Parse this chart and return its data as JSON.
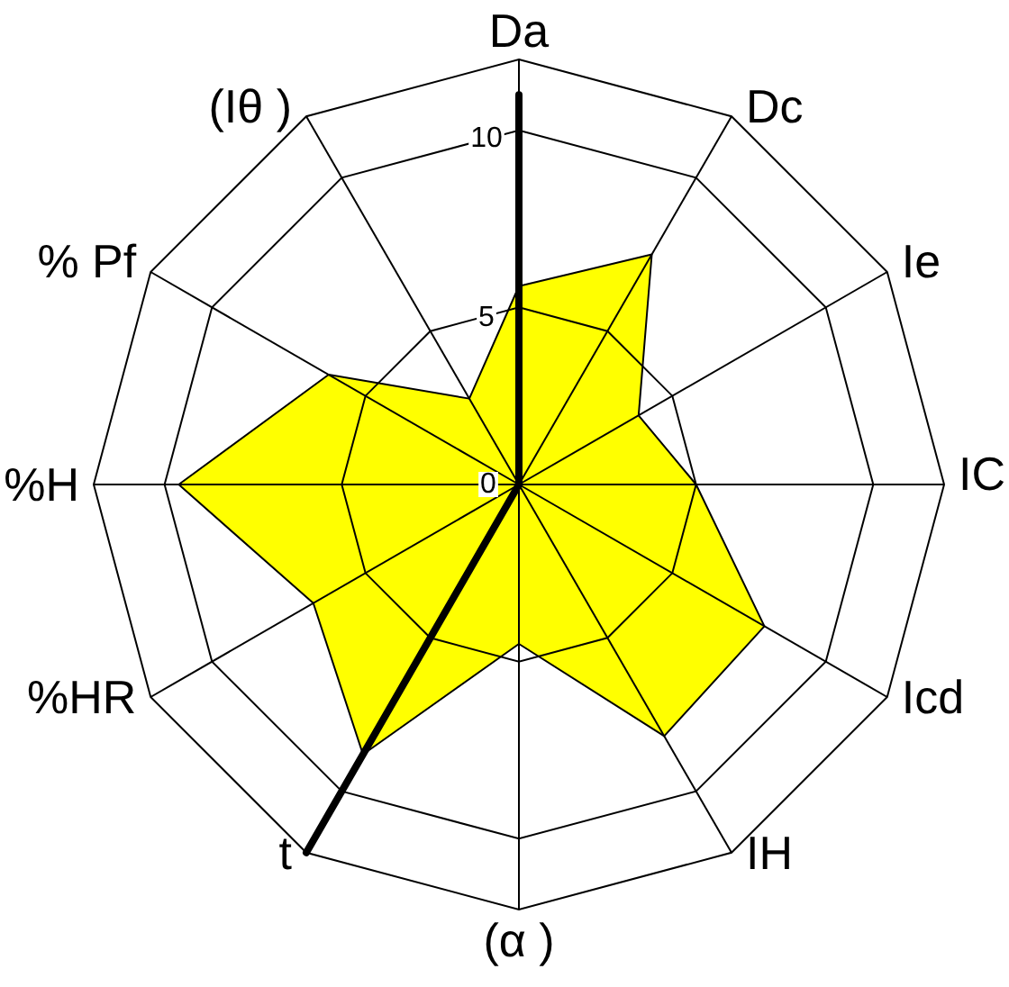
{
  "chart_data": {
    "type": "radar",
    "categories": [
      "Da",
      "Dc",
      "Ie",
      "IC",
      "Icd",
      "IH",
      "(α )",
      "t",
      "%HR",
      "%H",
      "% Pf",
      "(Iθ )"
    ],
    "series": [
      {
        "color": "#ffff00",
        "values": [
          5.6,
          7.5,
          3.9,
          5.0,
          8.0,
          8.2,
          4.5,
          8.8,
          6.7,
          9.6,
          6.2,
          2.8
        ]
      },
      {
        "color": "#000000",
        "values": [
          11,
          0,
          0,
          0,
          0,
          0,
          0,
          12,
          0,
          0,
          0,
          0
        ]
      }
    ],
    "ylim": [
      0,
      12
    ],
    "yticks": [
      0,
      5,
      10
    ],
    "grid": true,
    "marker": "none"
  }
}
